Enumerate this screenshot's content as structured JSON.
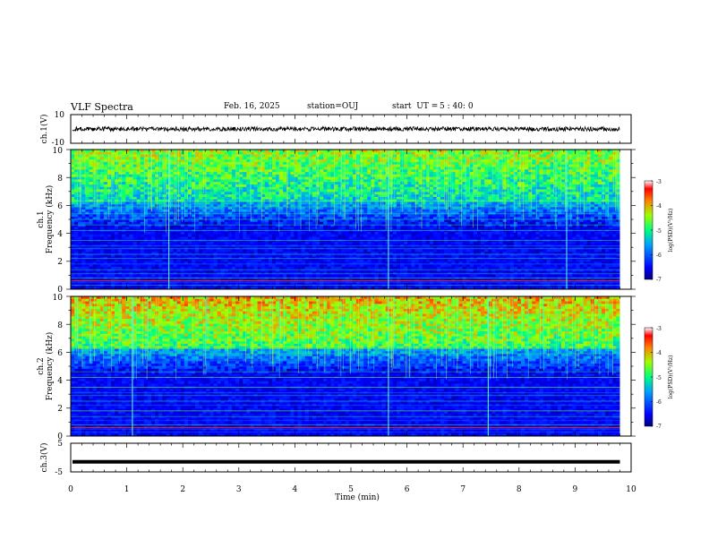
{
  "header": {
    "title": "VLF Spectra",
    "date": "Feb. 16, 2025",
    "station": "station=OUJ",
    "start_prefix": "start  UT =",
    "start_time": "5 : 40: 0"
  },
  "colors": {
    "stops": [
      "#000080",
      "#0000ff",
      "#0080ff",
      "#00ffff",
      "#00ff80",
      "#80ff00",
      "#ffff00",
      "#ff8000",
      "#ff0000",
      "#ffffff"
    ],
    "trace": "#000000"
  },
  "chart_data": [
    {
      "id": "ch1-waveform",
      "type": "line",
      "ylabel": "ch.1(V)",
      "ylim": [
        -10,
        10
      ],
      "yticks": [
        "10",
        "-10"
      ],
      "approx_level": 0,
      "approx_noise_amplitude": 1.5
    },
    {
      "id": "ch1-spectrogram",
      "type": "heatmap",
      "ylabel_top": "ch.1",
      "ylabel": "Frequency (kHz)",
      "ylim": [
        0,
        10
      ],
      "yticks": [
        "0",
        "2",
        "4",
        "6",
        "8",
        "10"
      ],
      "xlim": [
        0,
        10
      ],
      "data_end_min": 9.8,
      "colorbar": {
        "label": "log(PSD)(V²/Hz)",
        "range": [
          -7,
          -3
        ],
        "ticks": [
          "-3",
          "-4",
          "-5",
          "-6",
          "-7"
        ]
      }
    },
    {
      "id": "ch2-spectrogram",
      "type": "heatmap",
      "ylabel_top": "ch.2",
      "ylabel": "Frequency (kHz)",
      "ylim": [
        0,
        10
      ],
      "yticks": [
        "0",
        "2",
        "4",
        "6",
        "8",
        "10"
      ],
      "xlim": [
        0,
        10
      ],
      "data_end_min": 9.8,
      "colorbar": {
        "label": "log(PSD)(V²/Hz)",
        "range": [
          -7,
          -3
        ],
        "ticks": [
          "-3",
          "-4",
          "-5",
          "-6",
          "-7"
        ]
      }
    },
    {
      "id": "ch3-waveform",
      "type": "line",
      "ylabel": "ch.3(V)",
      "ylim": [
        -5,
        5
      ],
      "yticks": [
        "5",
        "-5"
      ],
      "approx_level": -1.5
    }
  ],
  "x_axis": {
    "label": "Time (min)",
    "range": [
      0,
      10
    ],
    "ticks": [
      "0",
      "1",
      "2",
      "3",
      "4",
      "5",
      "6",
      "7",
      "8",
      "9",
      "10"
    ]
  }
}
